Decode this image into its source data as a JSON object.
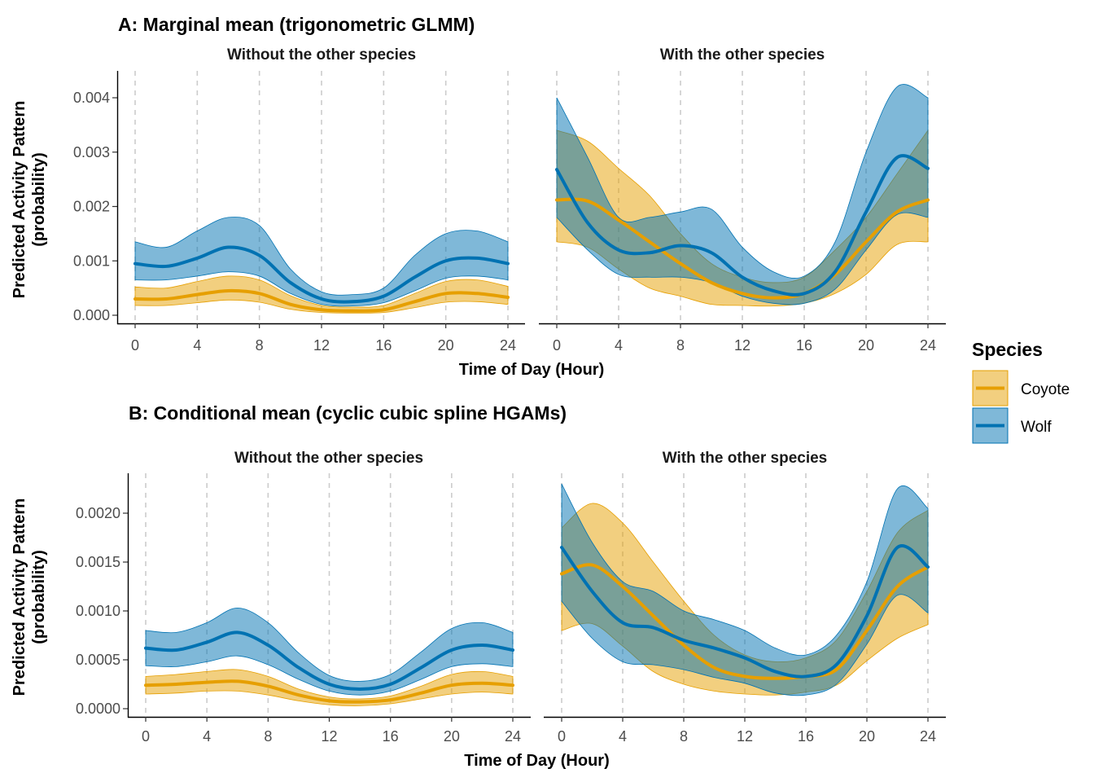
{
  "chart_data": [
    {
      "type": "line",
      "panel": "A",
      "title": "A: Marginal mean (trigonometric GLMM)",
      "xlabel": "Time of Day (Hour)",
      "ylabel": "Predicted Activity Pattern\n(probability)",
      "ylabel_lines": [
        "Predicted Activity Pattern",
        "(probability)"
      ],
      "xlim": [
        0,
        24
      ],
      "ylim": [
        0,
        0.0042
      ],
      "xticks": [
        0,
        4,
        8,
        12,
        16,
        20,
        24
      ],
      "xtick_labels": [
        "0",
        "4",
        "8",
        "12",
        "16",
        "20",
        "24"
      ],
      "yticks": [
        0,
        0.001,
        0.002,
        0.003,
        0.004
      ],
      "ytick_labels": [
        "0.000",
        "0.001",
        "0.002",
        "0.003",
        "0.004"
      ],
      "grid": "vertical dashed",
      "x": [
        0,
        2,
        4,
        6,
        8,
        10,
        12,
        14,
        16,
        18,
        20,
        22,
        24
      ],
      "facets": [
        {
          "label": "Without the other species",
          "series": [
            {
              "name": "Coyote",
              "values": [
                0.0003,
                0.0003,
                0.00038,
                0.00045,
                0.0004,
                0.0002,
                0.0001,
                8e-05,
                0.0001,
                0.00025,
                0.0004,
                0.0004,
                0.00033
              ],
              "lower": [
                0.00018,
                0.00018,
                0.00023,
                0.00028,
                0.00024,
                0.00011,
                5e-05,
                4e-05,
                5e-05,
                0.00014,
                0.00024,
                0.00025,
                0.0002
              ],
              "upper": [
                0.00052,
                0.0005,
                0.00062,
                0.00072,
                0.00065,
                0.00036,
                0.00018,
                0.00015,
                0.00018,
                0.0004,
                0.00062,
                0.00065,
                0.00053
              ]
            },
            {
              "name": "Wolf",
              "values": [
                0.00095,
                0.0009,
                0.00105,
                0.00125,
                0.0011,
                0.0006,
                0.0003,
                0.00025,
                0.00035,
                0.0007,
                0.001,
                0.00105,
                0.00095
              ],
              "lower": [
                0.00065,
                0.00065,
                0.00072,
                0.0008,
                0.00072,
                0.0004,
                0.0002,
                0.00017,
                0.00023,
                0.00045,
                0.00068,
                0.00072,
                0.00065
              ],
              "upper": [
                0.00135,
                0.00125,
                0.00155,
                0.0018,
                0.00165,
                0.00085,
                0.00043,
                0.00038,
                0.0005,
                0.0011,
                0.0015,
                0.00155,
                0.00135
              ]
            }
          ]
        },
        {
          "label": "With the other species",
          "series": [
            {
              "name": "Coyote",
              "values": [
                0.00212,
                0.0021,
                0.00175,
                0.00135,
                0.00095,
                0.0006,
                0.0004,
                0.00032,
                0.0004,
                0.00075,
                0.00135,
                0.0019,
                0.00212
              ],
              "lower": [
                0.00135,
                0.00125,
                0.00085,
                0.0005,
                0.00035,
                0.0002,
                0.00018,
                0.00017,
                0.00022,
                0.0004,
                0.00075,
                0.0013,
                0.00135
              ],
              "upper": [
                0.0034,
                0.0032,
                0.0027,
                0.0022,
                0.0015,
                0.00095,
                0.0007,
                0.0006,
                0.0007,
                0.0012,
                0.0018,
                0.0026,
                0.0034
              ]
            },
            {
              "name": "Wolf",
              "values": [
                0.00268,
                0.0017,
                0.0012,
                0.00115,
                0.00128,
                0.00115,
                0.0007,
                0.00045,
                0.0004,
                0.0008,
                0.0019,
                0.0029,
                0.0027
              ],
              "lower": [
                0.0018,
                0.0012,
                0.00075,
                0.0007,
                0.0007,
                0.0006,
                0.00035,
                0.00022,
                0.00022,
                0.00048,
                0.0012,
                0.00185,
                0.0018
              ],
              "upper": [
                0.004,
                0.0029,
                0.0018,
                0.0018,
                0.0019,
                0.00195,
                0.00125,
                0.0008,
                0.00072,
                0.00135,
                0.003,
                0.0042,
                0.004
              ]
            }
          ]
        }
      ]
    },
    {
      "type": "line",
      "panel": "B",
      "title": "B: Conditional mean (cyclic cubic spline HGAMs)",
      "xlabel": "Time of Day (Hour)",
      "ylabel": "Predicted Activity Pattern\n(probability)",
      "ylabel_lines": [
        "Predicted Activity Pattern",
        "(probability)"
      ],
      "xlim": [
        0,
        24
      ],
      "ylim": [
        0,
        0.0023
      ],
      "xticks": [
        0,
        4,
        8,
        12,
        16,
        20,
        24
      ],
      "xtick_labels": [
        "0",
        "4",
        "8",
        "12",
        "16",
        "20",
        "24"
      ],
      "yticks": [
        0,
        0.0005,
        0.001,
        0.0015,
        0.002
      ],
      "ytick_labels": [
        "0.0000",
        "0.0005",
        "0.0010",
        "0.0015",
        "0.0020"
      ],
      "grid": "vertical dashed",
      "x": [
        0,
        2,
        4,
        6,
        8,
        10,
        12,
        14,
        16,
        18,
        20,
        22,
        24
      ],
      "facets": [
        {
          "label": "Without the other species",
          "series": [
            {
              "name": "Coyote",
              "values": [
                0.00024,
                0.00025,
                0.00027,
                0.00028,
                0.00023,
                0.00014,
                8e-05,
                7e-05,
                9e-05,
                0.00016,
                0.00024,
                0.00026,
                0.00024
              ],
              "lower": [
                0.00015,
                0.00016,
                0.00018,
                0.00018,
                0.00014,
                8e-05,
                4e-05,
                3e-05,
                5e-05,
                0.0001,
                0.00015,
                0.00017,
                0.00015
              ],
              "upper": [
                0.00033,
                0.00035,
                0.00038,
                0.0004,
                0.00033,
                0.0002,
                0.00012,
                0.0001,
                0.00013,
                0.00023,
                0.00035,
                0.00038,
                0.00033
              ]
            },
            {
              "name": "Wolf",
              "values": [
                0.00062,
                0.0006,
                0.00068,
                0.00078,
                0.00065,
                0.00042,
                0.00025,
                0.0002,
                0.00025,
                0.00042,
                0.0006,
                0.00065,
                0.0006
              ],
              "lower": [
                0.00044,
                0.00043,
                0.00048,
                0.00054,
                0.00045,
                0.0003,
                0.00018,
                0.00014,
                0.00018,
                0.0003,
                0.00043,
                0.00046,
                0.00043
              ],
              "upper": [
                0.0008,
                0.00078,
                0.00088,
                0.00103,
                0.00088,
                0.00057,
                0.00034,
                0.00028,
                0.00035,
                0.00058,
                0.00082,
                0.00088,
                0.00078
              ]
            }
          ]
        },
        {
          "label": "With the other species",
          "series": [
            {
              "name": "Coyote",
              "values": [
                0.00138,
                0.00147,
                0.00125,
                0.00095,
                0.00065,
                0.00042,
                0.00033,
                0.00031,
                0.00033,
                0.0004,
                0.0008,
                0.00125,
                0.00145
              ],
              "lower": [
                0.0008,
                0.00087,
                0.00064,
                0.00038,
                0.00025,
                0.00018,
                0.00015,
                0.00014,
                0.00017,
                0.00024,
                0.00049,
                0.00072,
                0.00086
              ],
              "upper": [
                0.00185,
                0.0021,
                0.0019,
                0.0015,
                0.0011,
                0.00075,
                0.00055,
                0.00048,
                0.00052,
                0.0007,
                0.0012,
                0.0018,
                0.00203
              ]
            },
            {
              "name": "Wolf",
              "values": [
                0.00165,
                0.0012,
                0.00088,
                0.00083,
                0.0007,
                0.00062,
                0.00052,
                0.00038,
                0.00033,
                0.00045,
                0.00095,
                0.00165,
                0.00145
              ],
              "lower": [
                0.0011,
                0.00072,
                0.00048,
                0.00045,
                0.0004,
                0.00032,
                0.00026,
                0.00016,
                0.00014,
                0.00025,
                0.00066,
                0.00116,
                0.00098
              ],
              "upper": [
                0.0023,
                0.0017,
                0.0013,
                0.0012,
                0.001,
                0.00091,
                0.0008,
                0.00062,
                0.00055,
                0.00075,
                0.0013,
                0.00225,
                0.00205
              ]
            }
          ]
        }
      ]
    }
  ],
  "legend": {
    "title": "Species",
    "items": [
      {
        "label": "Coyote",
        "color": "#E69F00"
      },
      {
        "label": "Wolf",
        "color": "#0072B2"
      }
    ]
  },
  "colors": {
    "Coyote": "#E69F00",
    "Wolf": "#0072B2",
    "grid": "#cccccc"
  }
}
